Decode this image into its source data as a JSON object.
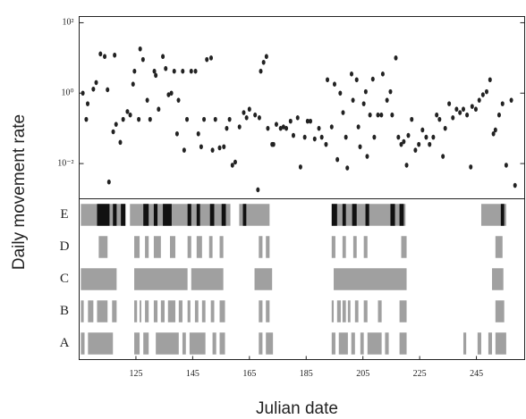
{
  "chart_data": [
    {
      "type": "scatter",
      "ylabel": "Daily movement rate",
      "log_y": true,
      "color": "#222222",
      "xlim": [
        105,
        262
      ],
      "ylim": [
        0.001,
        150
      ],
      "yticks": [
        {
          "value": 100,
          "label": "10²"
        },
        {
          "value": 1,
          "label": "10⁰"
        },
        {
          "value": 0.01,
          "label": "10⁻²"
        }
      ],
      "x": [
        106.3,
        107.5,
        108,
        110,
        111,
        112.5,
        114,
        115,
        115.5,
        117,
        117.5,
        118,
        119.5,
        120.5,
        122,
        123,
        124,
        124.5,
        126,
        126.5,
        127.5,
        129,
        130,
        131.5,
        132,
        133,
        134.5,
        135.5,
        136.5,
        137.5,
        138.5,
        139.5,
        140,
        141.5,
        142,
        143,
        144.5,
        146,
        147,
        148,
        149,
        150,
        151.5,
        152,
        153,
        154.5,
        156,
        157,
        158,
        159,
        160,
        161.5,
        163,
        164,
        165,
        167,
        168,
        168.5,
        169,
        170,
        171,
        171.5,
        173,
        173.5,
        174.5,
        176,
        177,
        178,
        179.5,
        180.5,
        182,
        183,
        184.5,
        185.5,
        186.5,
        188,
        189.5,
        190.5,
        192,
        192.5,
        194,
        195,
        196,
        197,
        198,
        199,
        199.5,
        201,
        201.5,
        202.8,
        203.4,
        204,
        205.3,
        206,
        206.5,
        207.5,
        208.5,
        209,
        210.3,
        211.5,
        212,
        213.5,
        214.7,
        215.3,
        216.6,
        217.5,
        218.5,
        219.4,
        220.4,
        221,
        222.2,
        223.5,
        224.7,
        226,
        227.3,
        228.5,
        229.8,
        231,
        232,
        233.2,
        234,
        235.4,
        236.7,
        238,
        239.2,
        240.4,
        241.7,
        243,
        243.5,
        244.8,
        246,
        247.3,
        248.6,
        249.8,
        251,
        251.7,
        253,
        254.2,
        255.5,
        257.3,
        258.6
      ],
      "values": [
        1,
        0.18,
        0.5,
        1.3,
        2,
        13,
        11,
        1.25,
        0.003,
        0.08,
        12,
        0.13,
        0.04,
        0.18,
        0.3,
        0.24,
        1.8,
        4.2,
        0.18,
        18,
        9,
        0.63,
        0.18,
        4.2,
        3.2,
        0.35,
        11,
        5,
        0.9,
        1,
        4.2,
        0.07,
        0.63,
        4.2,
        0.024,
        0.18,
        4.2,
        4.2,
        0.07,
        0.03,
        0.18,
        9,
        10,
        0.024,
        0.18,
        0.028,
        0.03,
        0.1,
        0.18,
        0.009,
        0.011,
        0.11,
        0.28,
        0.2,
        0.35,
        0.24,
        0.0018,
        0.2,
        4.2,
        7.5,
        11,
        0.1,
        0.035,
        0.035,
        0.13,
        0.1,
        0.11,
        0.1,
        0.16,
        0.063,
        0.2,
        0.008,
        0.056,
        0.16,
        0.16,
        0.05,
        0.1,
        0.056,
        0.035,
        2.4,
        0.11,
        1.8,
        0.013,
        1,
        0.28,
        0.056,
        0.0075,
        3.5,
        0.63,
        2.4,
        0.11,
        0.03,
        0.5,
        1.1,
        0.016,
        0.24,
        2.5,
        0.056,
        0.24,
        0.24,
        3.5,
        0.63,
        1.1,
        0.24,
        10,
        0.056,
        0.035,
        0.042,
        0.009,
        0.063,
        0.18,
        0.024,
        0.035,
        0.09,
        0.056,
        0.035,
        0.056,
        0.24,
        0.18,
        0.016,
        0.1,
        0.5,
        0.2,
        0.35,
        0.28,
        0.35,
        0.24,
        0.008,
        0.42,
        0.35,
        0.63,
        0.9,
        1.1,
        2.4,
        0.07,
        0.09,
        0.24,
        0.5,
        0.009,
        0.63,
        0.0024
      ]
    },
    {
      "type": "event",
      "xlabel": "Julian date",
      "xlim": [
        105,
        262
      ],
      "xticks": [
        125,
        145,
        165,
        185,
        205,
        225,
        245
      ],
      "series": [
        {
          "name": "A",
          "color": "#a0a0a0",
          "intervals": [
            [
              105.6,
              106.9
            ],
            [
              108.1,
              116.9
            ],
            [
              124.4,
              126.3
            ],
            [
              127.6,
              129.5
            ],
            [
              132.0,
              140.1
            ],
            [
              141.4,
              142.6
            ],
            [
              143.9,
              149.5
            ],
            [
              152.0,
              153.3
            ],
            [
              154.5,
              156.4
            ],
            [
              168.3,
              169.6
            ],
            [
              170.8,
              173.3
            ],
            [
              194.0,
              195.3
            ],
            [
              196.5,
              199.7
            ],
            [
              200.9,
              202.2
            ],
            [
              204.1,
              205.3
            ],
            [
              206.6,
              211.6
            ],
            [
              212.8,
              214.1
            ],
            [
              217.9,
              220.4
            ],
            [
              240.4,
              241.4
            ],
            [
              245.4,
              246.7
            ],
            [
              249.2,
              250.5
            ],
            [
              251.7,
              255.5
            ]
          ]
        },
        {
          "name": "B",
          "color": "#a0a0a0",
          "intervals": [
            [
              105.6,
              106.6
            ],
            [
              108.1,
              110.0
            ],
            [
              111.3,
              115.0
            ],
            [
              116.6,
              118.2
            ],
            [
              124.4,
              125.4
            ],
            [
              126.3,
              126.9
            ],
            [
              128.2,
              129.5
            ],
            [
              131.3,
              132.6
            ],
            [
              133.8,
              135.1
            ],
            [
              136.3,
              138.9
            ],
            [
              140.1,
              141.4
            ],
            [
              143.2,
              144.2
            ],
            [
              145.8,
              147.0
            ],
            [
              148.3,
              149.5
            ],
            [
              151.4,
              152.6
            ],
            [
              154.5,
              156.4
            ],
            [
              168.3,
              169.6
            ],
            [
              170.8,
              172.1
            ],
            [
              194.0,
              194.7
            ],
            [
              195.9,
              197.2
            ],
            [
              197.8,
              199.0
            ],
            [
              199.7,
              200.6
            ],
            [
              202.2,
              203.4
            ],
            [
              205.3,
              206.6
            ],
            [
              210.3,
              211.6
            ],
            [
              217.9,
              220.4
            ],
            [
              251.7,
              254.8
            ]
          ]
        },
        {
          "name": "C",
          "color": "#a0a0a0",
          "intervals": [
            [
              105.6,
              118.2
            ],
            [
              124.4,
              143.2
            ],
            [
              144.5,
              155.8
            ],
            [
              166.8,
              173.0
            ],
            [
              194.7,
              220.4
            ],
            [
              250.5,
              254.5
            ]
          ]
        },
        {
          "name": "D",
          "color": "#a0a0a0",
          "intervals": [
            [
              111.9,
              115.0
            ],
            [
              124.4,
              126.3
            ],
            [
              128.2,
              129.5
            ],
            [
              131.3,
              133.8
            ],
            [
              137.0,
              138.9
            ],
            [
              143.2,
              144.5
            ],
            [
              146.4,
              148.3
            ],
            [
              150.8,
              152.0
            ],
            [
              154.5,
              155.8
            ],
            [
              168.3,
              169.6
            ],
            [
              170.8,
              172.1
            ],
            [
              194.0,
              195.3
            ],
            [
              197.8,
              199.0
            ],
            [
              201.6,
              202.8
            ],
            [
              205.3,
              206.6
            ],
            [
              218.5,
              220.4
            ],
            [
              251.7,
              254.2
            ]
          ]
        },
        {
          "name": "E",
          "color": "#a0a0a0",
          "intervals": [
            [
              105.6,
              121.3
            ],
            [
              122.9,
              158.3
            ],
            [
              161.4,
              172.1
            ],
            [
              194.0,
              220.0
            ],
            [
              246.7,
              255.5
            ]
          ],
          "highlight_color": "#111111",
          "highlight_intervals": [
            [
              111.3,
              115.7
            ],
            [
              116.9,
              118.2
            ],
            [
              119.7,
              121.3
            ],
            [
              127.6,
              129.5
            ],
            [
              131.3,
              132.6
            ],
            [
              134.5,
              137.6
            ],
            [
              143.2,
              144.5
            ],
            [
              146.4,
              147.6
            ],
            [
              151.1,
              152.6
            ],
            [
              155.2,
              156.7
            ],
            [
              162.7,
              163.9
            ],
            [
              194.0,
              195.9
            ],
            [
              197.8,
              199.0
            ],
            [
              201.2,
              202.8
            ],
            [
              205.9,
              207.2
            ],
            [
              214.7,
              216.3
            ],
            [
              217.9,
              219.4
            ],
            [
              253.6,
              254.8
            ]
          ]
        }
      ]
    }
  ]
}
